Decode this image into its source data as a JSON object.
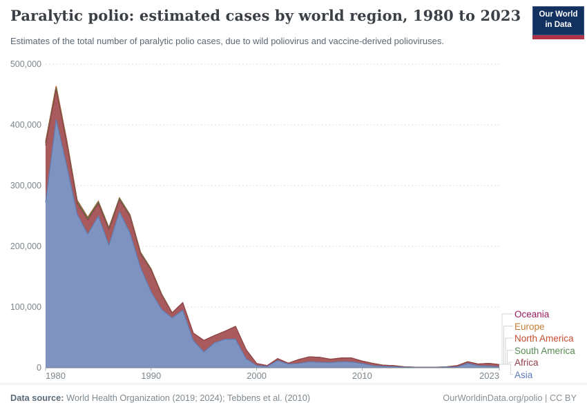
{
  "header": {
    "title": "Paralytic polio: estimated cases by world region, 1980 to 2023",
    "subtitle": "Estimates of the total number of paralytic polio cases, due to wild poliovirus and vaccine-derived polioviruses."
  },
  "logo": {
    "line1": "Our World",
    "line2": "in Data",
    "bg_color": "#12315f",
    "bar_color": "#af3349"
  },
  "chart_data": {
    "type": "area",
    "stacked": true,
    "title": "Paralytic polio: estimated cases by world region, 1980 to 2023",
    "xlabel": "",
    "ylabel": "",
    "ylim": [
      0,
      500000
    ],
    "grid": "dashed-horizontal",
    "legend_position": "right",
    "x": [
      1980,
      1981,
      1982,
      1983,
      1984,
      1985,
      1986,
      1987,
      1988,
      1989,
      1990,
      1991,
      1992,
      1993,
      1994,
      1995,
      1996,
      1997,
      1998,
      1999,
      2000,
      2001,
      2002,
      2003,
      2004,
      2005,
      2006,
      2007,
      2008,
      2009,
      2010,
      2011,
      2012,
      2013,
      2014,
      2015,
      2016,
      2017,
      2018,
      2019,
      2020,
      2021,
      2022,
      2023
    ],
    "xticks": [
      {
        "value": 1980,
        "label": "1980",
        "align": "start"
      },
      {
        "value": 1990,
        "label": "1990",
        "align": "middle"
      },
      {
        "value": 2000,
        "label": "2000",
        "align": "middle"
      },
      {
        "value": 2010,
        "label": "2010",
        "align": "middle"
      },
      {
        "value": 2023,
        "label": "2023",
        "align": "end"
      }
    ],
    "yticks": [
      {
        "value": 0,
        "label": "0"
      },
      {
        "value": 100000,
        "label": "100,000"
      },
      {
        "value": 200000,
        "label": "200,000"
      },
      {
        "value": 300000,
        "label": "300,000"
      },
      {
        "value": 400000,
        "label": "400,000"
      },
      {
        "value": 500000,
        "label": "500,000"
      }
    ],
    "series": [
      {
        "name": "Asia",
        "fill": "#7e93c0",
        "stroke": "#5f7cb2",
        "label_color": "#5c77b7",
        "values": [
          272000,
          409000,
          333000,
          253000,
          220000,
          250000,
          202000,
          257000,
          222000,
          165000,
          125000,
          96000,
          82000,
          95000,
          45000,
          26000,
          41000,
          47000,
          47000,
          15000,
          3500,
          2000,
          12000,
          6000,
          7000,
          10000,
          9000,
          8500,
          10000,
          9500,
          7000,
          3500,
          2300,
          1900,
          900,
          600,
          600,
          600,
          1200,
          1500,
          7000,
          3400,
          2700,
          1500
        ]
      },
      {
        "name": "Africa",
        "fill": "#a85a5d",
        "stroke": "#92434b",
        "label_color": "#8f3e47",
        "values": [
          94000,
          49000,
          37000,
          18000,
          23500,
          20500,
          25500,
          19500,
          27500,
          23000,
          36000,
          24000,
          8000,
          12000,
          12000,
          19000,
          12000,
          13000,
          21000,
          15000,
          3500,
          1500,
          3000,
          1500,
          6500,
          8000,
          8000,
          5500,
          6000,
          6500,
          4000,
          3700,
          1900,
          1500,
          600,
          300,
          200,
          200,
          300,
          1900,
          2800,
          2700,
          4500,
          3800
        ]
      },
      {
        "name": "South America",
        "fill": "#75a263",
        "stroke": "#4f7e45",
        "label_color": "#578a52",
        "values": [
          3500,
          3000,
          3000,
          3000,
          2800,
          2500,
          2500,
          2500,
          2000,
          1800,
          1500,
          1000,
          500,
          200,
          100,
          50,
          30,
          30,
          30,
          30,
          30,
          30,
          30,
          30,
          30,
          30,
          30,
          30,
          30,
          30,
          30,
          30,
          30,
          30,
          30,
          30,
          30,
          30,
          30,
          30,
          30,
          30,
          30,
          30
        ]
      },
      {
        "name": "North America",
        "fill": "#d3704b",
        "stroke": "#c44e2d",
        "label_color": "#c94e31",
        "values": [
          2000,
          2000,
          1500,
          1200,
          1000,
          800,
          600,
          500,
          400,
          300,
          300,
          200,
          100,
          50,
          20,
          20,
          20,
          20,
          20,
          20,
          20,
          20,
          20,
          20,
          20,
          20,
          20,
          20,
          20,
          20,
          20,
          20,
          20,
          20,
          20,
          20,
          20,
          20,
          20,
          20,
          20,
          20,
          20,
          20
        ]
      },
      {
        "name": "Europe",
        "fill": "#d89c55",
        "stroke": "#bf7b2f",
        "label_color": "#c67e35",
        "values": [
          1000,
          900,
          800,
          700,
          600,
          500,
          400,
          400,
          300,
          300,
          200,
          200,
          100,
          50,
          20,
          20,
          20,
          20,
          20,
          20,
          20,
          20,
          20,
          20,
          20,
          20,
          20,
          20,
          20,
          20,
          20,
          20,
          20,
          20,
          20,
          20,
          20,
          20,
          20,
          20,
          20,
          20,
          20,
          20
        ]
      },
      {
        "name": "Oceania",
        "fill": "#b55b8d",
        "stroke": "#991c5c",
        "label_color": "#9b1c5c",
        "values": [
          100,
          100,
          100,
          100,
          80,
          80,
          60,
          60,
          50,
          50,
          40,
          40,
          30,
          20,
          10,
          10,
          10,
          10,
          10,
          10,
          10,
          10,
          10,
          10,
          10,
          10,
          10,
          10,
          10,
          10,
          10,
          10,
          10,
          10,
          10,
          10,
          10,
          10,
          10,
          10,
          10,
          10,
          10,
          10
        ]
      }
    ]
  },
  "footer": {
    "source_label": "Data source:",
    "source_text": "World Health Organization (2019; 2024); Tebbens et al. (2010)",
    "credit": "OurWorldinData.org/polio | CC BY"
  }
}
